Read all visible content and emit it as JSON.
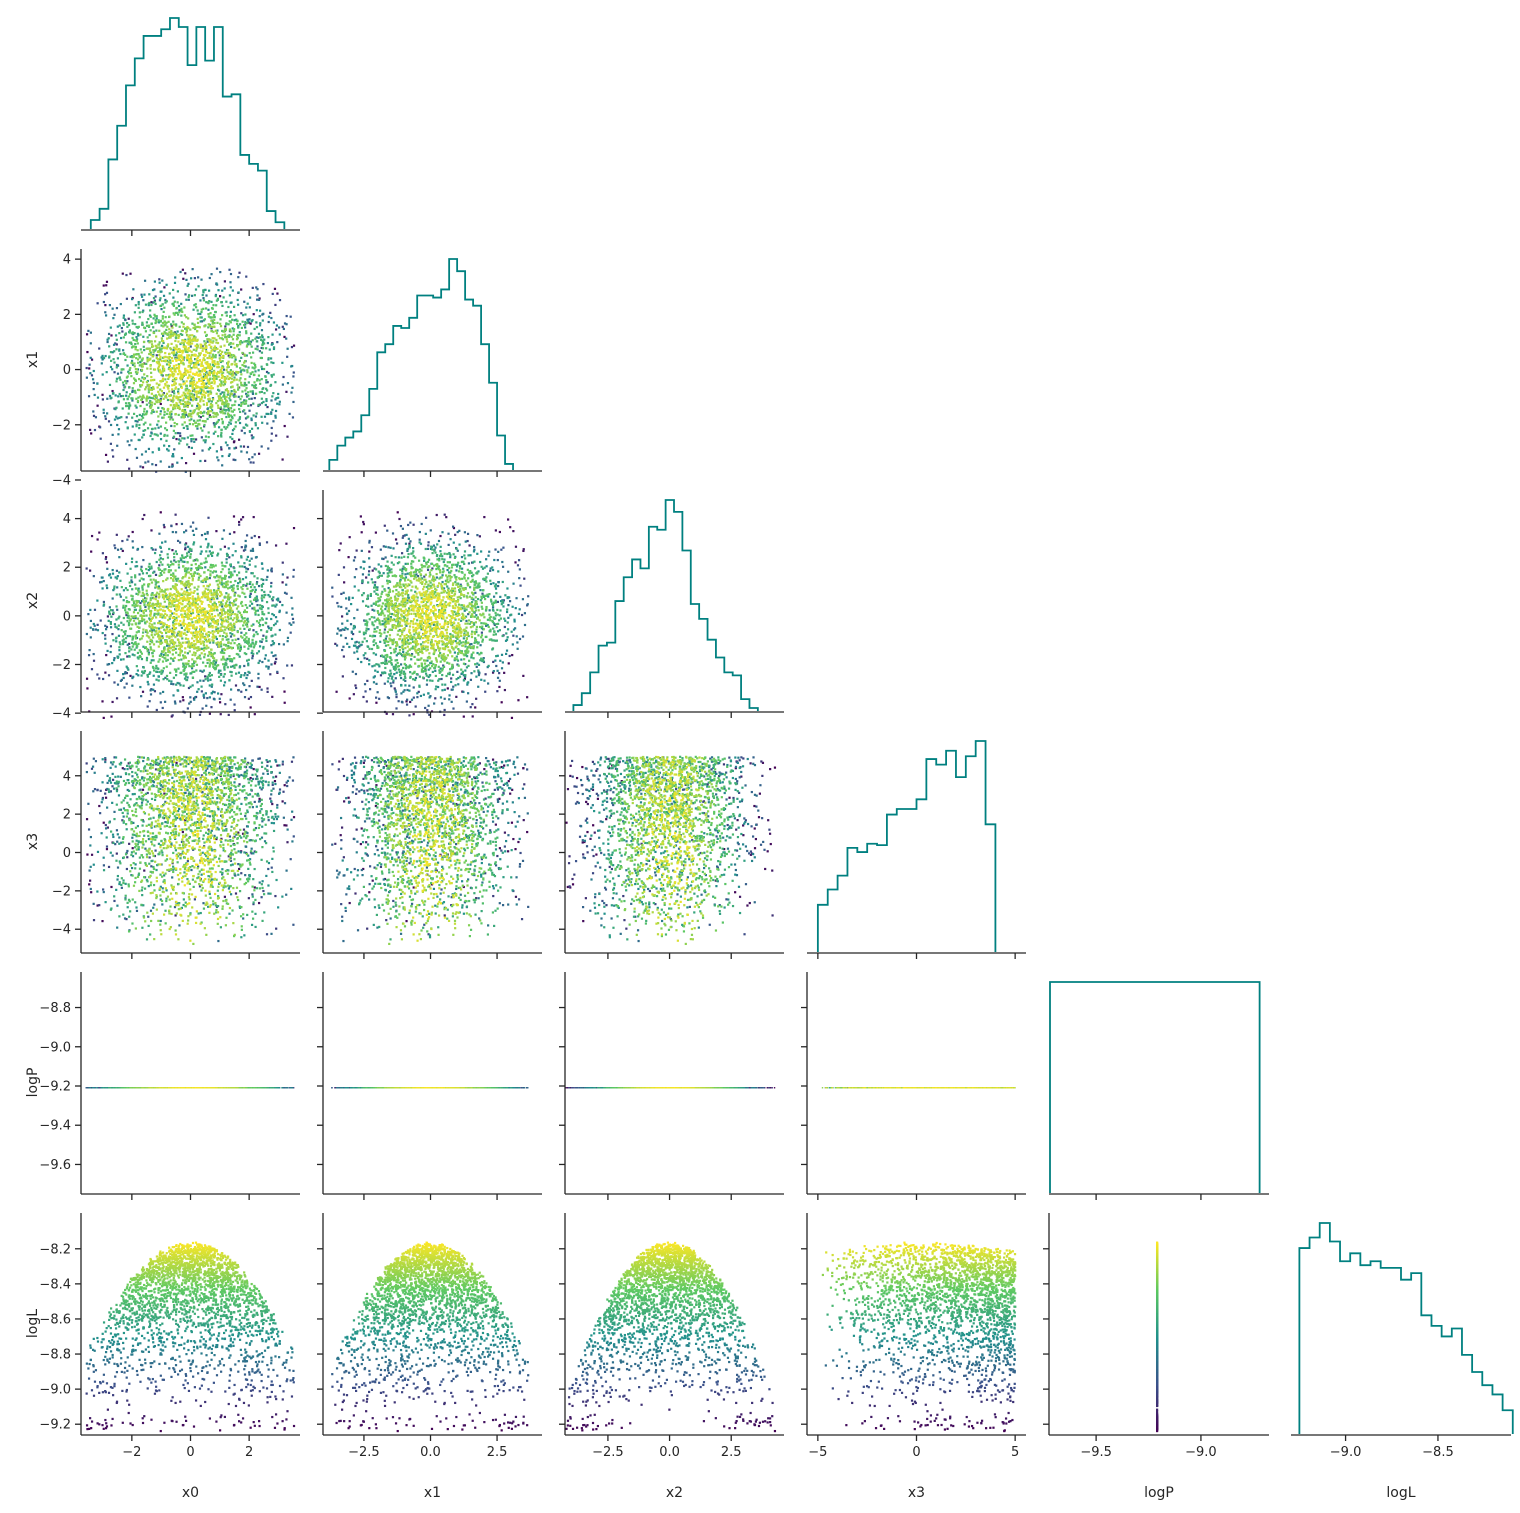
{
  "figure": {
    "type": "corner-plot",
    "hist_color": "#008080",
    "colormap": [
      "#440154",
      "#3b528b",
      "#21918c",
      "#5ec962",
      "#fde725"
    ],
    "scatter_color_by": "logL",
    "n_points": 2500
  },
  "variables": [
    {
      "key": "x0",
      "label": "x0",
      "range": [
        -3.7,
        3.7
      ],
      "ticks": [
        -2,
        0,
        2
      ],
      "tick_labels": [
        "−2",
        "0",
        "2"
      ]
    },
    {
      "key": "x1",
      "label": "x1",
      "range": [
        -4.0,
        4.15
      ],
      "ticks": [
        -2.5,
        0.0,
        2.5
      ],
      "tick_labels": [
        "−2.5",
        "0.0",
        "2.5"
      ],
      "yticks": [
        -4,
        -2,
        0,
        2,
        4
      ],
      "ytick_labels": [
        "−4",
        "−2",
        "0",
        "2",
        "4"
      ]
    },
    {
      "key": "x2",
      "label": "x2",
      "range": [
        -4.2,
        4.6
      ],
      "ticks": [
        -2.5,
        0.0,
        2.5
      ],
      "tick_labels": [
        "−2.5",
        "0.0",
        "2.5"
      ],
      "yticks": [
        -4,
        -2,
        0,
        2,
        4
      ],
      "ytick_labels": [
        "−4",
        "−2",
        "0",
        "2",
        "4"
      ]
    },
    {
      "key": "x3",
      "label": "x3",
      "range": [
        -5.5,
        5.5
      ],
      "ticks": [
        -5,
        0,
        5
      ],
      "tick_labels": [
        "−5",
        "0",
        "5"
      ],
      "yticks": [
        -4,
        -2,
        0,
        2,
        4
      ],
      "ytick_labels": [
        "−4",
        "−2",
        "0",
        "2",
        "4"
      ]
    },
    {
      "key": "logP",
      "label": "logP",
      "range": [
        -9.72,
        -8.68
      ],
      "ticks": [
        -9.5,
        -9.0
      ],
      "tick_labels": [
        "−9.5",
        "−9.0"
      ],
      "yticks": [
        -9.6,
        -9.4,
        -9.2,
        -9.0,
        -8.8
      ],
      "ytick_labels": [
        "−9.6",
        "−9.4",
        "−9.2",
        "−9.0",
        "−8.8"
      ]
    },
    {
      "key": "logL",
      "label": "logL",
      "range": [
        -9.29,
        -8.11
      ],
      "ticks": [
        -9.0,
        -8.5
      ],
      "tick_labels": [
        "−9.0",
        "−8.5"
      ],
      "yticks": [
        -9.2,
        -9.0,
        -8.8,
        -8.6,
        -8.4,
        -8.2
      ],
      "ytick_labels": [
        "−9.2",
        "−9.0",
        "−8.8",
        "−8.6",
        "−8.4",
        "−8.2"
      ]
    }
  ],
  "chart_data": {
    "type": "scatter",
    "layout": "corner",
    "logP_constant": -9.21,
    "histograms": {
      "x0": {
        "start": -3.4,
        "step": 0.3,
        "counts": [
          4,
          9,
          31,
          46,
          64,
          76,
          86,
          86,
          89,
          94,
          90,
          73,
          90,
          75,
          90,
          59,
          60,
          33,
          29,
          26,
          8,
          3
        ]
      },
      "x1": {
        "start": -3.8,
        "step": 0.3,
        "counts": [
          5,
          12,
          16,
          19,
          27,
          40,
          58,
          62,
          71,
          70,
          75,
          86,
          86,
          85,
          89,
          104,
          98,
          84,
          81,
          62,
          43,
          17,
          3
        ]
      },
      "x2": {
        "start": -3.9,
        "step": 0.34,
        "counts": [
          2,
          6,
          13,
          22,
          23,
          37,
          45,
          51,
          48,
          62,
          61,
          71,
          67,
          54,
          36,
          31,
          24,
          18,
          13,
          12,
          4,
          1
        ]
      },
      "x3": {
        "start": -5.0,
        "step": 0.5,
        "counts": [
          34,
          45,
          55,
          75,
          72,
          78,
          77,
          99,
          103,
          103,
          110,
          139,
          135,
          145,
          126,
          141,
          152,
          92
        ]
      },
      "logP": {
        "start": -9.72,
        "step": 1.0,
        "counts": [
          2500
        ]
      },
      "logL": {
        "start": -9.25,
        "step": 0.055,
        "counts": [
          141,
          149,
          160,
          146,
          131,
          137,
          128,
          131,
          126,
          126,
          117,
          122,
          90,
          82,
          74,
          80,
          60,
          47,
          37,
          30,
          18
        ]
      }
    }
  }
}
